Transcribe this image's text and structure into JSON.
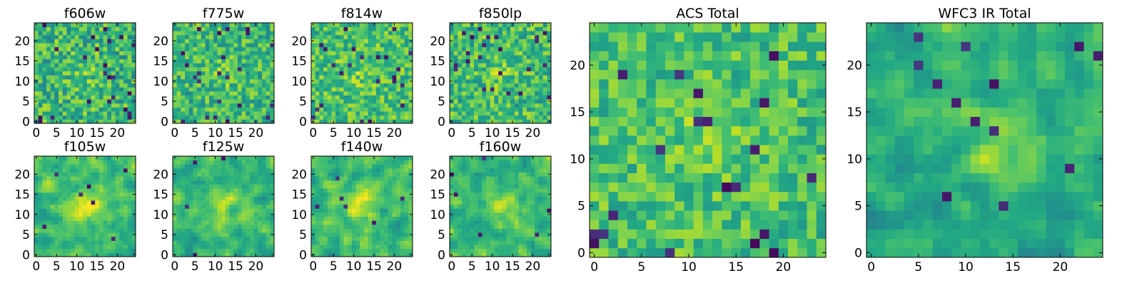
{
  "chart_data": [
    {
      "type": "heatmap",
      "title": "f606w",
      "colormap": "viridis",
      "grid_size": [
        25,
        25
      ],
      "xlim": [
        0,
        24
      ],
      "ylim": [
        0,
        24
      ],
      "xticks": [
        "0",
        "5",
        "10",
        "15",
        "20"
      ],
      "yticks": [
        "0",
        "5",
        "10",
        "15",
        "20"
      ],
      "xlabel": "",
      "ylabel": "",
      "pattern": "noise",
      "seed": 11,
      "mean": 0.66,
      "spread": 0.22
    },
    {
      "type": "heatmap",
      "title": "f775w",
      "colormap": "viridis",
      "grid_size": [
        25,
        25
      ],
      "xlim": [
        0,
        24
      ],
      "ylim": [
        0,
        24
      ],
      "xticks": [
        "0",
        "5",
        "10",
        "15",
        "20"
      ],
      "yticks": [
        "0",
        "5",
        "10",
        "15",
        "20"
      ],
      "xlabel": "",
      "ylabel": "",
      "pattern": "noise",
      "seed": 23,
      "mean": 0.66,
      "spread": 0.2
    },
    {
      "type": "heatmap",
      "title": "f814w",
      "colormap": "viridis",
      "grid_size": [
        25,
        25
      ],
      "xlim": [
        0,
        24
      ],
      "ylim": [
        0,
        24
      ],
      "xticks": [
        "0",
        "5",
        "10",
        "15",
        "20"
      ],
      "yticks": [
        "0",
        "5",
        "10",
        "15",
        "20"
      ],
      "xlabel": "",
      "ylabel": "",
      "pattern": "noise",
      "seed": 37,
      "mean": 0.7,
      "spread": 0.19
    },
    {
      "type": "heatmap",
      "title": "f850lp",
      "colormap": "viridis",
      "grid_size": [
        25,
        25
      ],
      "xlim": [
        0,
        24
      ],
      "ylim": [
        0,
        24
      ],
      "xticks": [
        "0",
        "5",
        "10",
        "15",
        "20"
      ],
      "yticks": [
        "0",
        "5",
        "10",
        "15",
        "20"
      ],
      "xlabel": "",
      "ylabel": "",
      "pattern": "noise",
      "seed": 41,
      "mean": 0.68,
      "spread": 0.2
    },
    {
      "type": "heatmap",
      "title": "f105w",
      "colormap": "viridis",
      "grid_size": [
        25,
        25
      ],
      "xlim": [
        0,
        24
      ],
      "ylim": [
        0,
        24
      ],
      "xticks": [
        "0",
        "5",
        "10",
        "15",
        "20"
      ],
      "yticks": [
        "0",
        "5",
        "10",
        "15",
        "20"
      ],
      "xlabel": "",
      "ylabel": "",
      "pattern": "smooth",
      "seed": 53,
      "mean": 0.68,
      "spread": 0.22
    },
    {
      "type": "heatmap",
      "title": "f125w",
      "colormap": "viridis",
      "grid_size": [
        25,
        25
      ],
      "xlim": [
        0,
        24
      ],
      "ylim": [
        0,
        24
      ],
      "xticks": [
        "0",
        "5",
        "10",
        "15",
        "20"
      ],
      "yticks": [
        "0",
        "5",
        "10",
        "15",
        "20"
      ],
      "xlabel": "",
      "ylabel": "",
      "pattern": "smooth",
      "seed": 67,
      "mean": 0.66,
      "spread": 0.22
    },
    {
      "type": "heatmap",
      "title": "f140w",
      "colormap": "viridis",
      "grid_size": [
        25,
        25
      ],
      "xlim": [
        0,
        24
      ],
      "ylim": [
        0,
        24
      ],
      "xticks": [
        "0",
        "5",
        "10",
        "15",
        "20"
      ],
      "yticks": [
        "0",
        "5",
        "10",
        "15",
        "20"
      ],
      "xlabel": "",
      "ylabel": "",
      "pattern": "smooth",
      "seed": 71,
      "mean": 0.68,
      "spread": 0.22
    },
    {
      "type": "heatmap",
      "title": "f160w",
      "colormap": "viridis",
      "grid_size": [
        25,
        25
      ],
      "xlim": [
        0,
        24
      ],
      "ylim": [
        0,
        24
      ],
      "xticks": [
        "0",
        "5",
        "10",
        "15",
        "20"
      ],
      "yticks": [
        "0",
        "5",
        "10",
        "15",
        "20"
      ],
      "xlabel": "",
      "ylabel": "",
      "pattern": "smooth",
      "seed": 83,
      "mean": 0.66,
      "spread": 0.22
    },
    {
      "type": "heatmap",
      "title": "ACS Total",
      "colormap": "viridis",
      "grid_size": [
        25,
        25
      ],
      "xlim": [
        0,
        24
      ],
      "ylim": [
        0,
        24
      ],
      "xticks": [
        "0",
        "5",
        "10",
        "15",
        "20"
      ],
      "yticks": [
        "0",
        "5",
        "10",
        "15",
        "20"
      ],
      "xlabel": "",
      "ylabel": "",
      "pattern": "noise",
      "seed": 97,
      "mean": 0.7,
      "spread": 0.17
    },
    {
      "type": "heatmap",
      "title": "WFC3 IR Total",
      "colormap": "viridis",
      "grid_size": [
        25,
        25
      ],
      "xlim": [
        0,
        24
      ],
      "ylim": [
        0,
        24
      ],
      "xticks": [
        "0",
        "5",
        "10",
        "15",
        "20"
      ],
      "yticks": [
        "0",
        "5",
        "10",
        "15",
        "20"
      ],
      "xlabel": "",
      "ylabel": "",
      "pattern": "smooth",
      "seed": 101,
      "mean": 0.62,
      "spread": 0.2
    }
  ]
}
